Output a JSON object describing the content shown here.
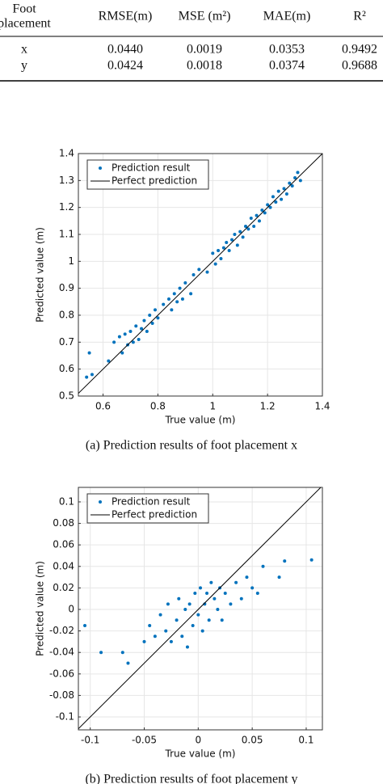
{
  "table": {
    "header": [
      [
        "Foot",
        "placement"
      ],
      "RMSE(m)",
      "MSE (m²)",
      "MAE(m)",
      "R²"
    ],
    "rows": [
      [
        "x",
        "0.0440",
        "0.0019",
        "0.0353",
        "0.9492"
      ],
      [
        "y",
        "0.0424",
        "0.0018",
        "0.0374",
        "0.9688"
      ]
    ]
  },
  "chart_data": [
    {
      "type": "scatter",
      "caption": "(a)  Prediction results of foot placement x",
      "x_label": "True value (m)",
      "y_label": "Predicted value (m)",
      "xlim": [
        0.51,
        1.4
      ],
      "ylim": [
        0.5,
        1.4
      ],
      "xticks": [
        0.6,
        0.8,
        1,
        1.2,
        1.4
      ],
      "yticks": [
        0.5,
        0.6,
        0.7,
        0.8,
        0.9,
        1,
        1.1,
        1.2,
        1.3,
        1.4
      ],
      "grid": true,
      "x": [
        0.54,
        0.55,
        0.56,
        0.62,
        0.64,
        0.66,
        0.67,
        0.68,
        0.69,
        0.7,
        0.71,
        0.72,
        0.73,
        0.74,
        0.75,
        0.76,
        0.77,
        0.78,
        0.79,
        0.8,
        0.82,
        0.84,
        0.85,
        0.86,
        0.87,
        0.88,
        0.89,
        0.9,
        0.92,
        0.93,
        0.95,
        0.98,
        1.0,
        1.01,
        1.02,
        1.03,
        1.04,
        1.05,
        1.06,
        1.07,
        1.08,
        1.09,
        1.1,
        1.11,
        1.12,
        1.13,
        1.14,
        1.15,
        1.16,
        1.17,
        1.18,
        1.19,
        1.2,
        1.21,
        1.22,
        1.23,
        1.24,
        1.25,
        1.26,
        1.27,
        1.28,
        1.29,
        1.3,
        1.31,
        1.32
      ],
      "series": [
        {
          "name": "Prediction result",
          "color": "#0072bd",
          "values": [
            0.57,
            0.66,
            0.58,
            0.63,
            0.7,
            0.72,
            0.66,
            0.73,
            0.69,
            0.74,
            0.7,
            0.76,
            0.71,
            0.75,
            0.78,
            0.74,
            0.8,
            0.77,
            0.82,
            0.79,
            0.84,
            0.86,
            0.82,
            0.88,
            0.85,
            0.9,
            0.86,
            0.92,
            0.88,
            0.95,
            0.97,
            0.96,
            1.03,
            0.99,
            1.04,
            1.01,
            1.05,
            1.07,
            1.04,
            1.08,
            1.1,
            1.06,
            1.11,
            1.09,
            1.13,
            1.12,
            1.16,
            1.13,
            1.17,
            1.15,
            1.19,
            1.18,
            1.21,
            1.2,
            1.24,
            1.22,
            1.26,
            1.23,
            1.27,
            1.25,
            1.29,
            1.28,
            1.31,
            1.33,
            1.3
          ]
        }
      ],
      "reference": {
        "name": "Perfect prediction",
        "color": "#000000"
      }
    },
    {
      "type": "scatter",
      "caption": "(b)  Prediction results of foot placement y",
      "x_label": "True value (m)",
      "y_label": "Predicted value (m)",
      "xlim": [
        -0.111,
        0.115
      ],
      "ylim": [
        -0.112,
        0.1135
      ],
      "xticks": [
        -0.1,
        -0.05,
        0,
        0.05,
        0.1
      ],
      "yticks": [
        -0.1,
        -0.08,
        -0.06,
        -0.04,
        -0.02,
        0,
        0.02,
        0.04,
        0.06,
        0.08,
        0.1
      ],
      "grid": true,
      "x": [
        -0.105,
        -0.09,
        -0.07,
        -0.065,
        -0.05,
        -0.045,
        -0.04,
        -0.035,
        -0.03,
        -0.028,
        -0.025,
        -0.02,
        -0.018,
        -0.015,
        -0.012,
        -0.01,
        -0.008,
        -0.005,
        -0.003,
        0,
        0.002,
        0.004,
        0.006,
        0.008,
        0.01,
        0.012,
        0.015,
        0.018,
        0.02,
        0.022,
        0.025,
        0.03,
        0.035,
        0.04,
        0.045,
        0.05,
        0.055,
        0.06,
        0.075,
        0.08,
        0.105
      ],
      "series": [
        {
          "name": "Prediction result",
          "color": "#0072bd",
          "values": [
            -0.015,
            -0.04,
            -0.04,
            -0.05,
            -0.03,
            -0.015,
            -0.025,
            -0.005,
            -0.02,
            0.005,
            -0.03,
            -0.01,
            0.01,
            -0.025,
            0,
            -0.035,
            0.005,
            -0.015,
            0.015,
            -0.005,
            0.02,
            -0.02,
            0.005,
            0.015,
            -0.01,
            0.025,
            0.01,
            0,
            0.02,
            -0.01,
            0.015,
            0.005,
            0.025,
            0.01,
            0.03,
            0.02,
            0.015,
            0.04,
            0.03,
            0.045,
            0.046
          ]
        }
      ],
      "reference": {
        "name": "Perfect prediction",
        "color": "#000000"
      }
    }
  ]
}
